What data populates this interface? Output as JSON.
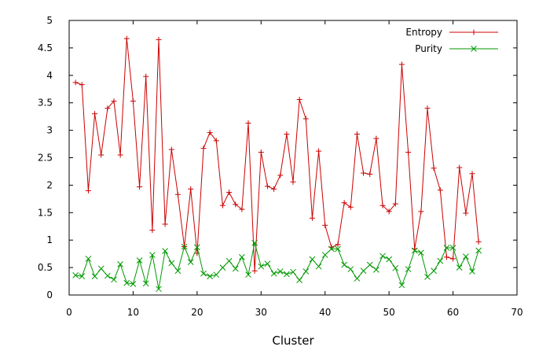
{
  "chart_data": {
    "type": "line",
    "title": "",
    "xlabel": "Cluster",
    "ylabel": "",
    "xlim": [
      0,
      70
    ],
    "ylim": [
      0,
      5
    ],
    "xticks": [
      "0",
      "10",
      "20",
      "30",
      "40",
      "50",
      "60",
      "70"
    ],
    "yticks": [
      "0",
      "0.5",
      "1",
      "1.5",
      "2",
      "2.5",
      "3",
      "3.5",
      "4",
      "4.5",
      "5"
    ],
    "grid": false,
    "legend": "top-right",
    "series": [
      {
        "name": "Entropy",
        "color": "#cc0000",
        "marker": "plus",
        "x": [
          1,
          2,
          3,
          4,
          5,
          6,
          7,
          8,
          9,
          10,
          11,
          12,
          13,
          14,
          15,
          16,
          17,
          18,
          19,
          20,
          21,
          22,
          23,
          24,
          25,
          26,
          27,
          28,
          29,
          30,
          31,
          32,
          33,
          34,
          35,
          36,
          37,
          38,
          39,
          40,
          41,
          42,
          43,
          44,
          45,
          46,
          47,
          48,
          49,
          50,
          51,
          52,
          53,
          54,
          55,
          56,
          57,
          58,
          59,
          60,
          61,
          62,
          63,
          64
        ],
        "y": [
          3.87,
          3.83,
          1.9,
          3.3,
          2.55,
          3.4,
          3.53,
          2.55,
          4.67,
          3.53,
          1.97,
          3.98,
          1.18,
          4.65,
          1.29,
          2.65,
          1.83,
          0.88,
          1.93,
          0.76,
          2.67,
          2.96,
          2.81,
          1.63,
          1.87,
          1.65,
          1.56,
          3.13,
          0.44,
          2.6,
          1.98,
          1.93,
          2.18,
          2.93,
          2.06,
          3.56,
          3.21,
          1.4,
          2.62,
          1.27,
          0.87,
          0.92,
          1.68,
          1.6,
          2.93,
          2.22,
          2.2,
          2.85,
          1.63,
          1.52,
          1.66,
          4.2,
          2.6,
          0.84,
          1.52,
          3.4,
          2.31,
          1.91,
          0.69,
          0.66,
          2.32,
          1.49,
          2.21,
          0.97
        ]
      },
      {
        "name": "Purity",
        "color": "#009900",
        "marker": "cross",
        "x": [
          1,
          2,
          3,
          4,
          5,
          6,
          7,
          8,
          9,
          10,
          11,
          12,
          13,
          14,
          15,
          16,
          17,
          18,
          19,
          20,
          21,
          22,
          23,
          24,
          25,
          26,
          27,
          28,
          29,
          30,
          31,
          32,
          33,
          34,
          35,
          36,
          37,
          38,
          39,
          40,
          41,
          42,
          43,
          44,
          45,
          46,
          47,
          48,
          49,
          50,
          51,
          52,
          53,
          54,
          55,
          56,
          57,
          58,
          59,
          60,
          61,
          62,
          63,
          64
        ],
        "y": [
          0.36,
          0.34,
          0.66,
          0.34,
          0.48,
          0.35,
          0.28,
          0.56,
          0.22,
          0.2,
          0.63,
          0.21,
          0.73,
          0.11,
          0.8,
          0.58,
          0.44,
          0.88,
          0.6,
          0.87,
          0.39,
          0.34,
          0.37,
          0.5,
          0.62,
          0.48,
          0.69,
          0.37,
          0.95,
          0.52,
          0.57,
          0.39,
          0.43,
          0.38,
          0.42,
          0.27,
          0.43,
          0.65,
          0.52,
          0.73,
          0.84,
          0.84,
          0.55,
          0.47,
          0.3,
          0.44,
          0.55,
          0.46,
          0.71,
          0.65,
          0.49,
          0.18,
          0.47,
          0.81,
          0.77,
          0.33,
          0.44,
          0.62,
          0.86,
          0.86,
          0.5,
          0.7,
          0.43,
          0.81
        ]
      }
    ]
  }
}
